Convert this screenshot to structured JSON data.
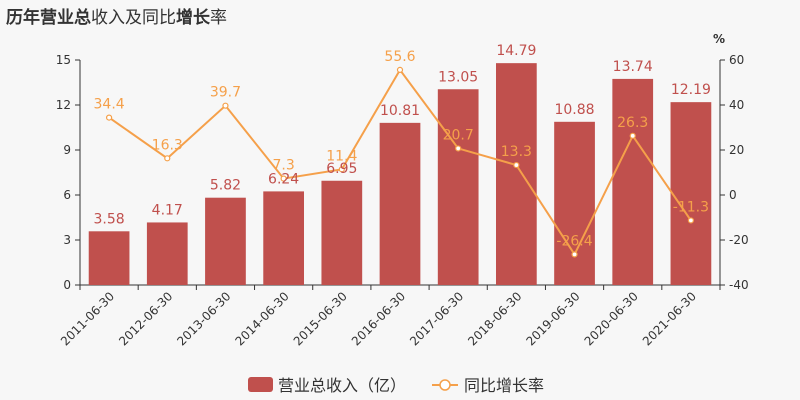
{
  "title_parts": [
    {
      "text": "历年",
      "bold": true
    },
    {
      "text": "营业总",
      "bold": true
    },
    {
      "text": "收入及同比",
      "bold": false
    },
    {
      "text": "增长",
      "bold": true
    },
    {
      "text": "率",
      "bold": false
    }
  ],
  "colors": {
    "bar": "#c0504d",
    "line": "#f5a04a",
    "axis": "#333333",
    "background": "#f7f7f7"
  },
  "chart_data": {
    "type": "bar",
    "categories": [
      "2011-06-30",
      "2012-06-30",
      "2013-06-30",
      "2014-06-30",
      "2015-06-30",
      "2016-06-30",
      "2017-06-30",
      "2018-06-30",
      "2019-06-30",
      "2020-06-30",
      "2021-06-30"
    ],
    "series": [
      {
        "name": "营业总收入（亿）",
        "type": "bar",
        "axis": "left",
        "values": [
          3.58,
          4.17,
          5.82,
          6.24,
          6.95,
          10.81,
          13.05,
          14.79,
          10.88,
          13.74,
          12.19
        ]
      },
      {
        "name": "同比增长率",
        "type": "line",
        "axis": "right",
        "values": [
          34.4,
          16.3,
          39.7,
          7.3,
          11.4,
          55.6,
          20.7,
          13.3,
          -26.4,
          26.3,
          -11.3
        ]
      }
    ],
    "y_left": {
      "ticks": [
        0,
        3,
        6,
        9,
        12,
        15
      ],
      "ylim": [
        0,
        15
      ]
    },
    "y_right": {
      "label": "%",
      "ticks": [
        -40,
        -20,
        0,
        20,
        40,
        60
      ],
      "ylim": [
        -40,
        60
      ]
    },
    "legend": {
      "position": "bottom-center"
    }
  }
}
